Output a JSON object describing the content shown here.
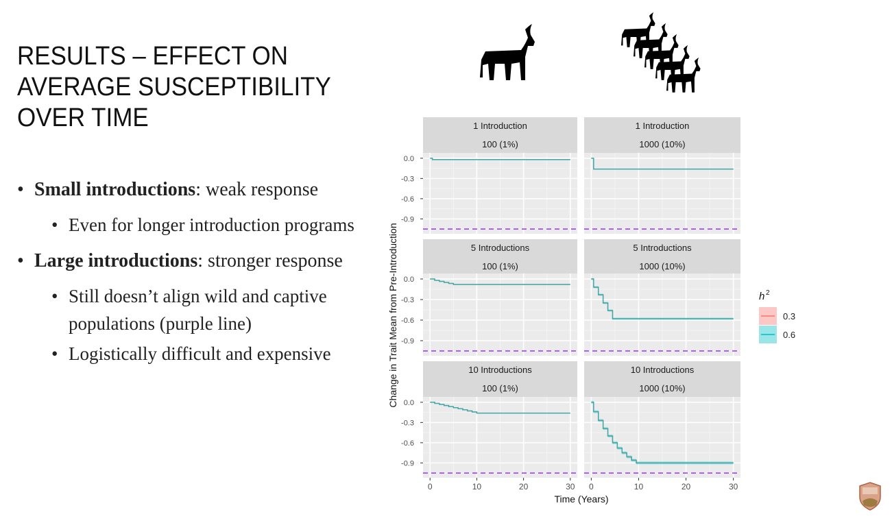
{
  "slide": {
    "title_lines": [
      "RESULTS – EFFECT ON",
      "AVERAGE SUSCEPTIBILITY",
      "OVER TIME"
    ],
    "bullets": [
      {
        "bold": "Small introductions",
        "rest": ": weak response",
        "subs": [
          "Even for longer introduction programs"
        ]
      },
      {
        "bold": "Large introductions",
        "rest": ": stronger response",
        "subs": [
          "Still doesn’t align wild and captive populations (purple line)",
          "Logistically difficult and expensive"
        ]
      }
    ],
    "icons": {
      "single": "goat-icon",
      "herd": "goat-herd-icon",
      "logo": "agency-shield-logo"
    }
  },
  "chart_data": {
    "type": "line",
    "xlabel": "Time (Years)",
    "ylabel": "Change in Trait Mean from Pre-Introduction",
    "xlim": [
      -1.5,
      31.5
    ],
    "ylim": [
      -1.12,
      0.08
    ],
    "xticks": [
      0,
      10,
      20,
      30
    ],
    "yticks": [
      0.0,
      -0.3,
      -0.6,
      -0.9
    ],
    "ytick_labels": [
      "0.0",
      "-0.3",
      "-0.6",
      "-0.9"
    ],
    "grid": true,
    "reference_line": {
      "y": -1.05,
      "color": "#9b30ff",
      "style": "dashed"
    },
    "legend": {
      "title": "h",
      "title_sup": "2",
      "placement": "right",
      "entries": [
        {
          "name": "0.3",
          "color": "#f8766d"
        },
        {
          "name": "0.6",
          "color": "#00bfc4"
        }
      ]
    },
    "facets": [
      {
        "row": "1 Introduction",
        "col": "100 (1%)",
        "x": [
          0,
          0.5,
          30
        ],
        "y": [
          0,
          -0.02,
          -0.02
        ],
        "band": 0.004
      },
      {
        "row": "1 Introduction",
        "col": "1000 (10%)",
        "x": [
          0,
          0.5,
          30
        ],
        "y": [
          0,
          -0.16,
          -0.16
        ],
        "band": 0.008
      },
      {
        "row": "5 Introductions",
        "col": "100 (1%)",
        "x": [
          0,
          1,
          2,
          3,
          4,
          5,
          30
        ],
        "y": [
          0,
          -0.02,
          -0.035,
          -0.05,
          -0.065,
          -0.08,
          -0.08
        ],
        "band": 0.005
      },
      {
        "row": "5 Introductions",
        "col": "1000 (10%)",
        "x": [
          0,
          0.5,
          1.5,
          2.5,
          3.5,
          4.5,
          30
        ],
        "y": [
          0,
          -0.12,
          -0.23,
          -0.35,
          -0.46,
          -0.58,
          -0.58
        ],
        "band": 0.015
      },
      {
        "row": "10 Introductions",
        "col": "100 (1%)",
        "x": [
          0,
          1,
          2,
          3,
          4,
          5,
          6,
          7,
          8,
          9,
          10,
          30
        ],
        "y": [
          0,
          -0.016,
          -0.032,
          -0.048,
          -0.064,
          -0.08,
          -0.096,
          -0.112,
          -0.128,
          -0.144,
          -0.16,
          -0.16
        ],
        "band": 0.006
      },
      {
        "row": "10 Introductions",
        "col": "1000 (10%)",
        "x": [
          0,
          0.5,
          1.5,
          2.5,
          3.5,
          4.5,
          5.5,
          6.5,
          7.5,
          8.5,
          9.5,
          30
        ],
        "y": [
          0,
          -0.14,
          -0.27,
          -0.39,
          -0.5,
          -0.6,
          -0.68,
          -0.75,
          -0.81,
          -0.86,
          -0.9,
          -0.9
        ],
        "band": 0.02
      }
    ]
  }
}
